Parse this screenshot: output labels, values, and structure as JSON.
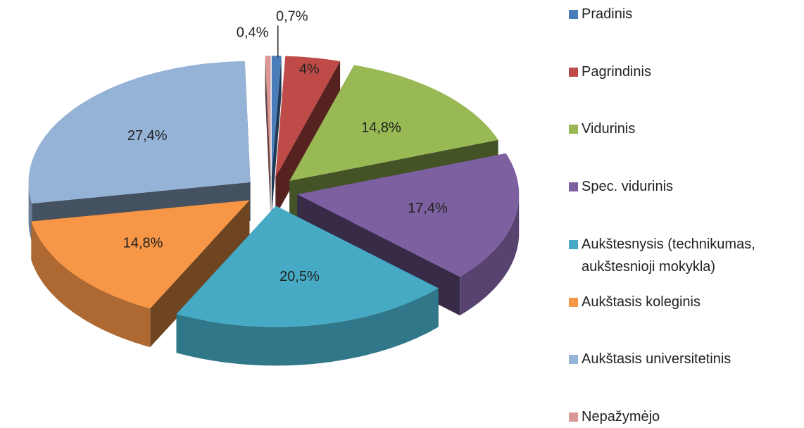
{
  "chart_data": {
    "type": "pie",
    "categories": [
      "Pradinis",
      "Pagrindinis",
      "Vidurinis",
      "Spec. vidurinis",
      "Aukštesnysis (technikumas, aukštesnioji mokykla)",
      "Aukštasis koleginis",
      "Aukštasis universitetinis",
      "Nepažymėjo"
    ],
    "values": [
      0.7,
      4,
      14.8,
      17.4,
      20.5,
      14.8,
      27.4,
      0.4
    ],
    "value_labels": [
      "0,7%",
      "4%",
      "14,8%",
      "17,4%",
      "20,5%",
      "14,8%",
      "27,4%",
      "0,4%"
    ],
    "colors": [
      "#4a7ebb",
      "#be4b48",
      "#98b954",
      "#7d60a0",
      "#46aac5",
      "#f79646",
      "#95b3d7",
      "#d99694"
    ],
    "legend": "right"
  }
}
